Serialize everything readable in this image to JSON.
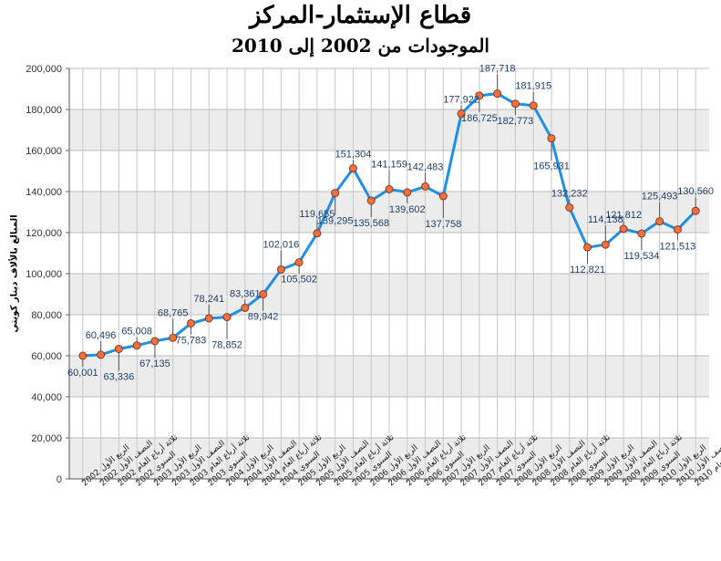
{
  "chart_data": {
    "type": "line",
    "title": "قطاع الإستثمار-المركز",
    "subtitle": "الموجودات من 2002 إلى 2010",
    "ylabel": "المبالغ بالألاف دينار كويتي",
    "xlabel": "",
    "ylim": [
      0,
      200000
    ],
    "yticks": [
      "0",
      "20,000",
      "40,000",
      "60,000",
      "80,000",
      "100,000",
      "120,000",
      "140,000",
      "160,000",
      "180,000",
      "200,000"
    ],
    "grid": true,
    "line_color": "#1e90e8",
    "marker_color": "#f07040",
    "band_color": "#ececec",
    "categories": [
      "الربع الأول 2002",
      "النصف الأول 2002",
      "ثلاثة أرباع العام 2002",
      "السنوي 2002",
      "الربع الأول 2003",
      "النصف الأول 2003",
      "ثلاثة أرباع العام 2003",
      "السنوي 2003",
      "الربع الأول 2004",
      "النصف الأول 2004",
      "ثلاثة أرباع العام 2004",
      "السنوي 2004",
      "الربع الأول 2005",
      "النصف الأول 2005",
      "ثلاثة أرباع العام 2005",
      "السنوي 2005",
      "الربع الأول 2006",
      "النصف الأول 2006",
      "ثلاثة أرباع العام 2006",
      "السنوي 2006",
      "الربع الأول 2007",
      "النصف الأول 2007",
      "ثلاثة أرباع العام 2007",
      "السنوي 2007",
      "الربع الأول 2008",
      "النصف الأول 2008",
      "ثلاثة أرباع العام 2008",
      "السنوي 2008",
      "الربع الأول 2009",
      "النصف الأول 2009",
      "ثلاثة أرباع العام 2009",
      "السنوي 2009",
      "الربع الأول 2010",
      "النصف الأول 2010",
      "ثلاثة أرباع العام 2010"
    ],
    "values": [
      60001,
      60496,
      63336,
      65008,
      67135,
      68765,
      75783,
      78241,
      78852,
      83361,
      89942,
      102016,
      105502,
      119655,
      139295,
      151304,
      135568,
      141159,
      139602,
      142483,
      137758,
      177922,
      186725,
      187718,
      182773,
      181915,
      165931,
      132232,
      112821,
      114138,
      121812,
      119534,
      125493,
      121513,
      130560
    ],
    "labels": [
      "60,001",
      "60,496",
      "63,336",
      "65,008",
      "67,135",
      "68,765",
      "75,783",
      "78,241",
      "78,852",
      "83,361",
      "89,942",
      "102,016",
      "105,502",
      "119,655",
      "139,295",
      "151,304",
      "135,568",
      "141,159",
      "139,602",
      "142,483",
      "137,758",
      "177,922",
      "186,725",
      "187,718",
      "182,773",
      "181,915",
      "165,931",
      "132,232",
      "112,821",
      "114,138",
      "121,812",
      "119,534",
      "125,493",
      "121,513",
      "130,560"
    ]
  }
}
